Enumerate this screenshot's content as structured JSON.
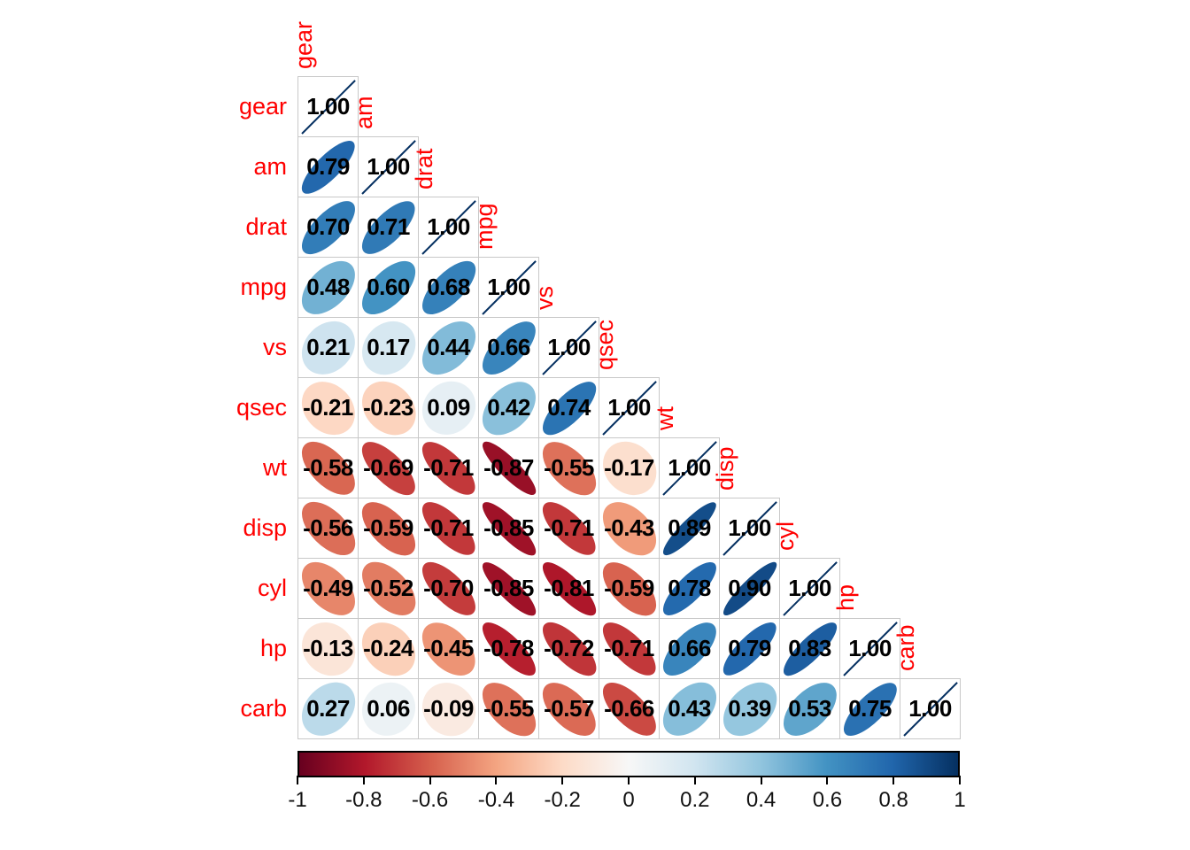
{
  "chart_data": {
    "type": "heatmap",
    "subtype": "correlation-matrix-lower-triangle-ellipses",
    "title": "",
    "variables": [
      "gear",
      "am",
      "drat",
      "mpg",
      "vs",
      "qsec",
      "wt",
      "disp",
      "cyl",
      "hp",
      "carb"
    ],
    "matrix_lower": [
      [
        1.0
      ],
      [
        0.79,
        1.0
      ],
      [
        0.7,
        0.71,
        1.0
      ],
      [
        0.48,
        0.6,
        0.68,
        1.0
      ],
      [
        0.21,
        0.17,
        0.44,
        0.66,
        1.0
      ],
      [
        -0.21,
        -0.23,
        0.09,
        0.42,
        0.74,
        1.0
      ],
      [
        -0.58,
        -0.69,
        -0.71,
        -0.87,
        -0.55,
        -0.17,
        1.0
      ],
      [
        -0.56,
        -0.59,
        -0.71,
        -0.85,
        -0.71,
        -0.43,
        0.89,
        1.0
      ],
      [
        -0.49,
        -0.52,
        -0.7,
        -0.85,
        -0.81,
        -0.59,
        0.78,
        0.9,
        1.0
      ],
      [
        -0.13,
        -0.24,
        -0.45,
        -0.78,
        -0.72,
        -0.71,
        0.66,
        0.79,
        0.83,
        1.0
      ],
      [
        0.27,
        0.06,
        -0.09,
        -0.55,
        -0.57,
        -0.66,
        0.43,
        0.39,
        0.53,
        0.75,
        1.0
      ]
    ],
    "value_decimals": 2,
    "legend": {
      "position": "bottom",
      "range": [
        -1,
        1
      ],
      "tick_labels": [
        "-1",
        "-0.8",
        "-0.6",
        "-0.4",
        "-0.2",
        "0",
        "0.2",
        "0.4",
        "0.6",
        "0.8",
        "1"
      ]
    },
    "palette_rdbu_11": [
      "#67001F",
      "#B2182B",
      "#D6604D",
      "#F4A582",
      "#FDDBC7",
      "#F7F7F7",
      "#D1E5F0",
      "#92C5DE",
      "#4393C3",
      "#2166AC",
      "#053061"
    ],
    "colors": {
      "variable_label": "#FF0000",
      "coefficient_text": "#000000",
      "grid_line": "#c8c8c8",
      "diagonal_line": "#053061",
      "background": "#FFFFFF",
      "tick_label": "#111111"
    }
  }
}
